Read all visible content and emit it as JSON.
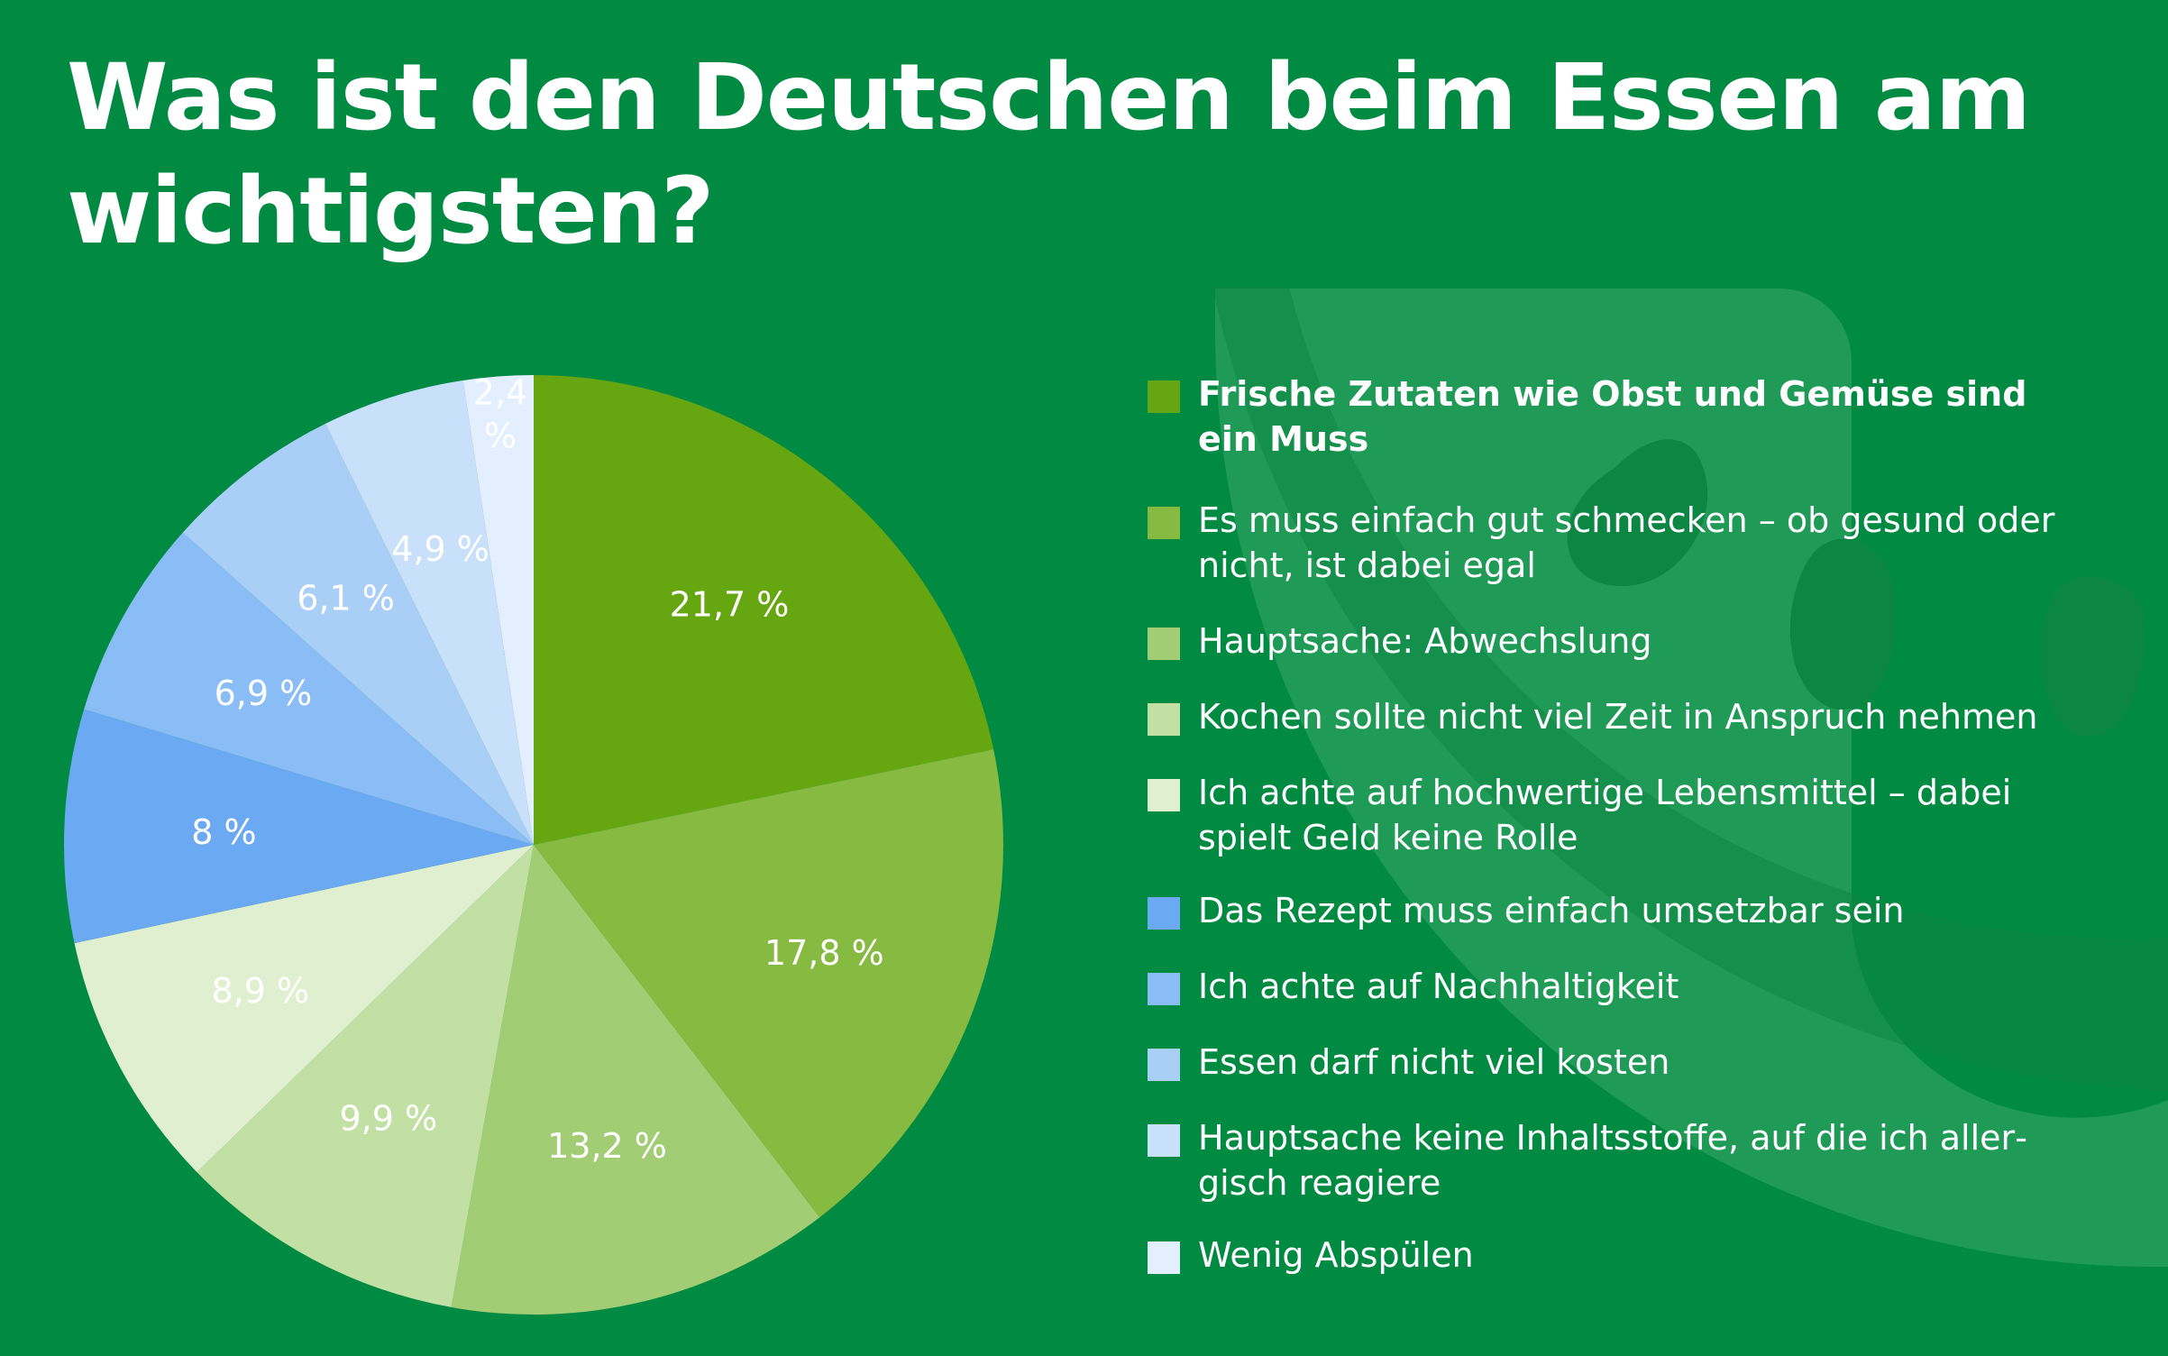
{
  "chart_data": {
    "type": "pie",
    "title": "Was ist den Deutschen beim Essen am wichtigsten?",
    "start_angle": "12 o'clock, clockwise",
    "legend_position": "right",
    "slices": [
      {
        "label": "Frische Zutaten wie Obst und Gemüse sind ein Muss",
        "value": 21.7,
        "display": "21,7 %",
        "color": "#66a610",
        "label_color": "#ffffff"
      },
      {
        "label": "Es muss einfach gut schmecken – ob gesund oder nicht, ist dabei egal",
        "value": 17.8,
        "display": "17,8 %",
        "color": "#86ba40",
        "label_color": "#ffffff"
      },
      {
        "label": "Hauptsache: Abwechslung",
        "value": 13.2,
        "display": "13,2 %",
        "color": "#a3cd74",
        "label_color": "#ffffff"
      },
      {
        "label": "Kochen sollte nicht viel Zeit in Anspruch nehmen",
        "value": 9.9,
        "display": "9,9 %",
        "color": "#c2e0a4",
        "label_color": "#ffffff"
      },
      {
        "label": "Ich achte auf hochwertige Lebensmittel – dabei spielt Geld keine Rolle",
        "value": 8.9,
        "display": "8,9 %",
        "color": "#e0efd0",
        "label_color": "#ffffff"
      },
      {
        "label": "Das Rezept muss einfach umsetzbar sein",
        "value": 8.0,
        "display": "8 %",
        "color": "#6baaf2",
        "label_color": "#ffffff"
      },
      {
        "label": "Ich achte auf Nachhaltigkeit",
        "value": 6.9,
        "display": "6,9 %",
        "color": "#8abdf5",
        "label_color": "#ffffff"
      },
      {
        "label": "Essen darf nicht viel kosten",
        "value": 6.1,
        "display": "6,1 %",
        "color": "#a9cff7",
        "label_color": "#ffffff"
      },
      {
        "label": "Hauptsache keine Inhaltsstoffe, auf die ich allergisch reagiere",
        "value": 4.9,
        "display": "4,9 %",
        "color": "#c8e0fa",
        "label_color": "#ffffff"
      },
      {
        "label": "Wenig Abspülen",
        "value": 2.4,
        "display": "2,4 %",
        "color": "#e3efff",
        "label_color": "#ffffff"
      }
    ]
  },
  "legend": {
    "items": [
      {
        "text": "Frische Zutaten wie Obst und Gemüse sind ein Muss",
        "color": "#66a610"
      },
      {
        "text": "Es muss einfach gut schmecken – ob gesund oder nicht, ist dabei egal",
        "color": "#86ba40"
      },
      {
        "text": "Hauptsache: Abwechslung",
        "color": "#a3cd74"
      },
      {
        "text": "Kochen sollte nicht viel Zeit in Anspruch nehmen",
        "color": "#c2e0a4"
      },
      {
        "text": "Ich achte auf hochwertige Lebensmittel – dabei spielt Geld keine Rolle",
        "color": "#e0efd0"
      },
      {
        "text": "Das Rezept muss einfach umsetzbar sein",
        "color": "#6baaf2"
      },
      {
        "text": "Ich achte auf Nachhaltigkeit",
        "color": "#8abdf5"
      },
      {
        "text": "Essen darf nicht viel kosten",
        "color": "#a9cff7"
      },
      {
        "text": "Hauptsache keine Inhaltsstoffe, auf die ich aller­gisch reagiere",
        "color": "#c8e0fa"
      },
      {
        "text": "Wenig Abspülen",
        "color": "#e3efff"
      }
    ]
  },
  "colors": {
    "background": "#008a42",
    "watermark": "#1f9a57",
    "watermark_dark": "#0c8643"
  },
  "watermark_icon": "smiley-face-watermark-icon"
}
